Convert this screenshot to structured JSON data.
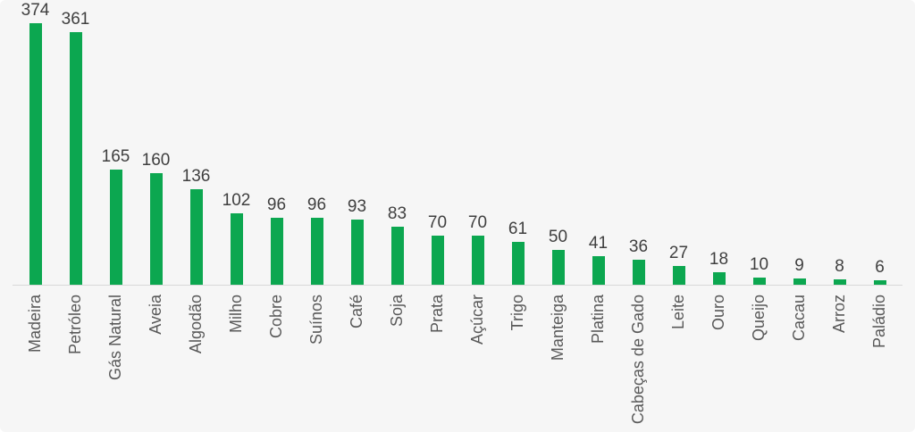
{
  "chart_data": {
    "type": "bar",
    "categories": [
      "Madeira",
      "Petróleo",
      "Gás Natural",
      "Aveia",
      "Algodão",
      "Milho",
      "Cobre",
      "Suínos",
      "Café",
      "Soja",
      "Prata",
      "Açúcar",
      "Trigo",
      "Manteiga",
      "Platina",
      "Cabeças de Gado",
      "Leite",
      "Ouro",
      "Queijo",
      "Cacau",
      "Arroz",
      "Paládio"
    ],
    "values": [
      374,
      361,
      165,
      160,
      136,
      102,
      96,
      96,
      93,
      83,
      70,
      70,
      61,
      50,
      41,
      36,
      27,
      18,
      10,
      9,
      8,
      6
    ],
    "value_labels_shown": true,
    "category_label_rotation_degrees": 90,
    "ylim": [
      0,
      380
    ],
    "grid": false,
    "legend_position": "none",
    "colors": {
      "bar": "#0ca750",
      "value_label": "#3f3f3f",
      "category_label": "#595959",
      "axis_line": "#d9d9d9",
      "background": "#f6f6f6"
    }
  }
}
